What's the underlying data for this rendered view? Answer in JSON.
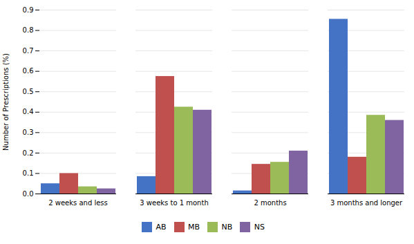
{
  "chart_data": {
    "type": "bar",
    "categories": [
      "2 weeks and less",
      "3 weeks to 1 month",
      "2 months",
      "3 months and longer"
    ],
    "series": [
      {
        "name": "AB",
        "color": "#4472C4",
        "values": [
          0.05,
          0.085,
          0.015,
          0.855
        ]
      },
      {
        "name": "MB",
        "color": "#C0504D",
        "values": [
          0.1,
          0.575,
          0.145,
          0.18
        ]
      },
      {
        "name": "NB",
        "color": "#9BBB59",
        "values": [
          0.035,
          0.425,
          0.155,
          0.385
        ]
      },
      {
        "name": "NS",
        "color": "#8064A2",
        "values": [
          0.025,
          0.41,
          0.21,
          0.36
        ]
      }
    ],
    "ylabel": "Number of Prescriptions (%)",
    "ylim": [
      0,
      0.9
    ],
    "yticks": [
      0,
      0.1,
      0.2,
      0.3,
      0.4,
      0.5,
      0.6,
      0.7,
      0.8,
      0.9
    ],
    "grid": true,
    "legend": "bottom"
  }
}
